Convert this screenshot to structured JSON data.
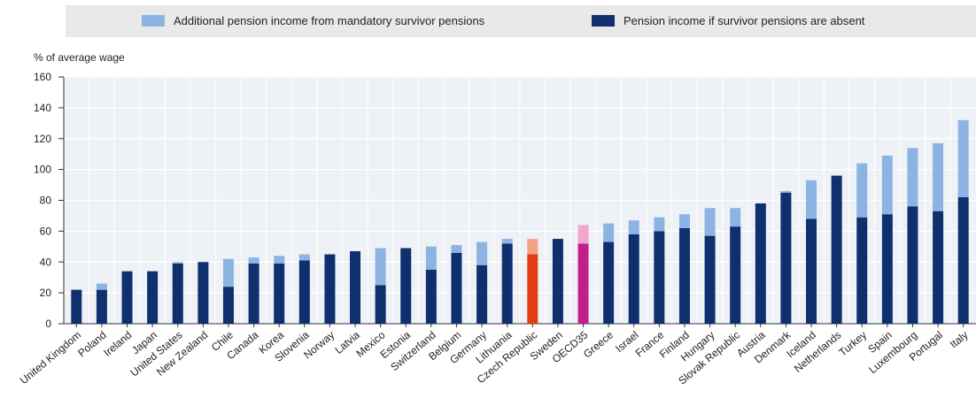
{
  "chart_data": {
    "type": "bar",
    "stacked": true,
    "unit_label": "% of average wage",
    "ylim": [
      0,
      160
    ],
    "yticks": [
      0,
      20,
      40,
      60,
      80,
      100,
      120,
      140,
      160
    ],
    "grid": true,
    "legend_position": "top",
    "categories": [
      "United Kingdom",
      "Poland",
      "Ireland",
      "Japan",
      "United States",
      "New Zealand",
      "Chile",
      "Canada",
      "Korea",
      "Slovenia",
      "Norway",
      "Latvia",
      "Mexico",
      "Estonia",
      "Switzerland",
      "Belgium",
      "Germany",
      "Lithuania",
      "Czech Republic",
      "Sweden",
      "OECD35",
      "Greece",
      "Israel",
      "France",
      "Finland",
      "Hungary",
      "Slovak Republic",
      "Austria",
      "Denmark",
      "Iceland",
      "Netherlands",
      "Turkey",
      "Spain",
      "Luxembourg",
      "Portugal",
      "Italy"
    ],
    "series": [
      {
        "name": "Pension income if survivor pensions are absent",
        "color": "#0f2f6e",
        "values": [
          22,
          22,
          34,
          34,
          39,
          40,
          24,
          39,
          39,
          41,
          45,
          47,
          25,
          49,
          35,
          46,
          38,
          52,
          45,
          55,
          52,
          53,
          58,
          60,
          62,
          57,
          63,
          78,
          85,
          68,
          96,
          69,
          71,
          76,
          73,
          82
        ]
      },
      {
        "name": "Additional pension income from mandatory survivor pensions",
        "color": "#8cb4e2",
        "values": [
          0,
          4,
          0,
          0,
          1,
          0,
          18,
          4,
          5,
          4,
          0,
          0,
          24,
          0,
          15,
          5,
          15,
          3,
          10,
          0,
          12,
          12,
          9,
          9,
          9,
          18,
          12,
          0,
          1,
          25,
          0,
          35,
          38,
          38,
          44,
          50
        ]
      }
    ],
    "highlight": {
      "Czech Republic": {
        "base": "#e23c12",
        "top": "#f4a182"
      },
      "OECD35": {
        "base": "#c21f89",
        "top": "#f0a6cf"
      }
    },
    "colors": {
      "base": "#0f2f6e",
      "top": "#8cb4e2",
      "legend_bg": "#e9e9e9",
      "plot_bg": "#eef1f5"
    }
  }
}
